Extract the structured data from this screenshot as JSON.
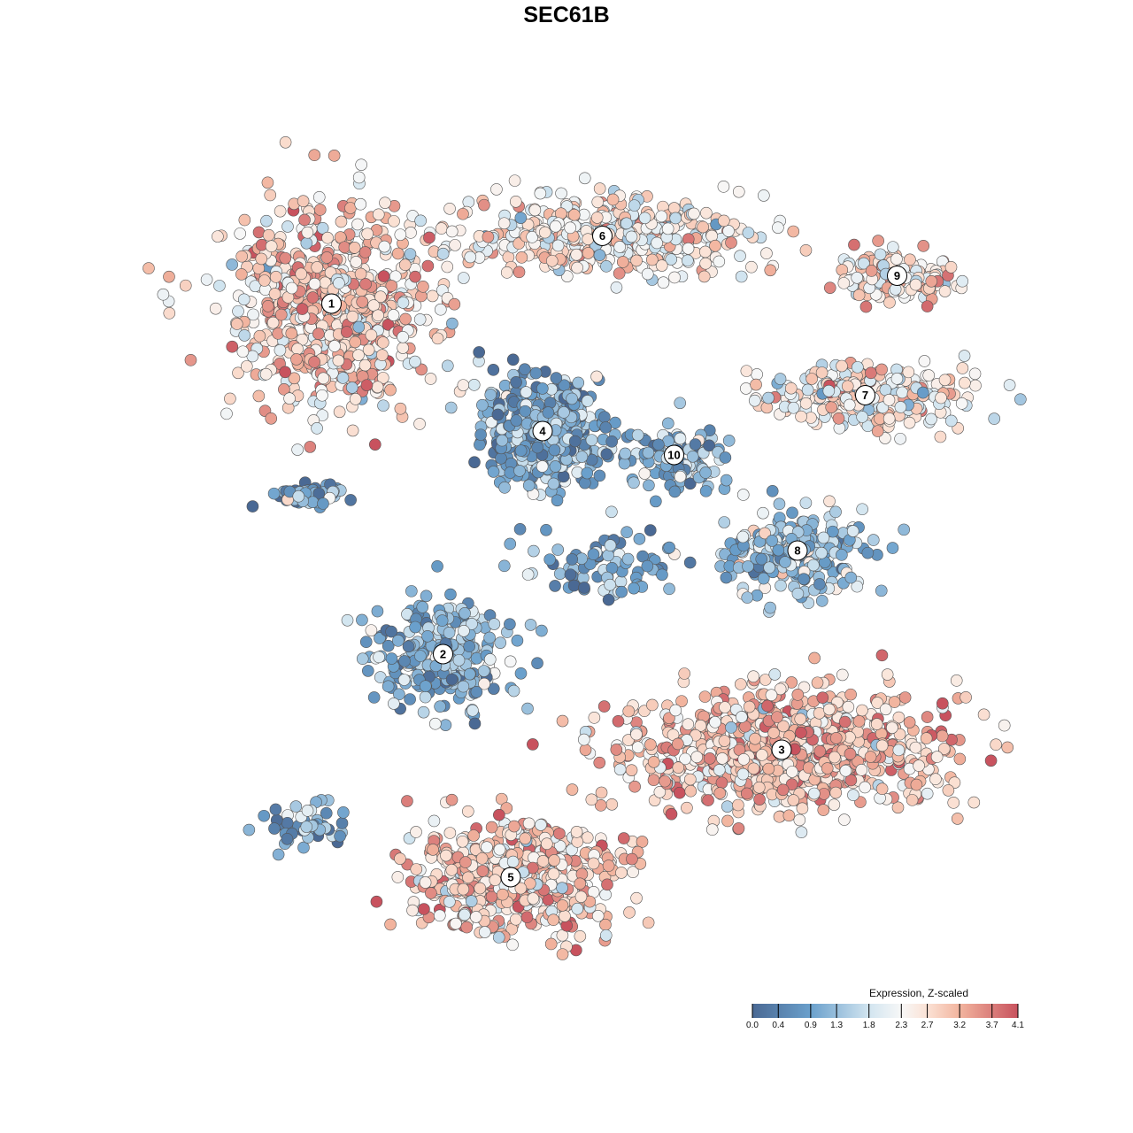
{
  "chart_data": {
    "type": "scatter",
    "title": "SEC61B",
    "xlabel": "",
    "ylabel": "",
    "grid": false,
    "axes_visible": false,
    "color_variable": "Expression, Z-scaled",
    "colorbar": {
      "title": "Expression, Z-scaled",
      "range": [
        0.0,
        4.1
      ],
      "ticks": [
        "0.0",
        "0.4",
        "0.9",
        "1.3",
        "1.8",
        "2.3",
        "2.7",
        "3.2",
        "3.7",
        "4.1"
      ],
      "tick_values": [
        0.0,
        0.4,
        0.9,
        1.3,
        1.8,
        2.3,
        2.7,
        3.2,
        3.7,
        4.1
      ],
      "colors": [
        [
          "0.0",
          "#4a6994"
        ],
        [
          "0.9",
          "#6aa0cc"
        ],
        [
          "1.8",
          "#d2e5f0"
        ],
        [
          "2.3",
          "#f7f7f7"
        ],
        [
          "2.7",
          "#fbe2d5"
        ],
        [
          "3.2",
          "#f2b49e"
        ],
        [
          "4.1",
          "#c8525e"
        ]
      ],
      "placement": "bottom-right"
    },
    "clusters": [
      {
        "label": "1",
        "center": [
          -5.9,
          6.6
        ],
        "spread": [
          2.4,
          2.3
        ],
        "mean_expression": 2.8,
        "n": 700
      },
      {
        "label": "2",
        "center": [
          -3.1,
          -2.2
        ],
        "spread": [
          1.5,
          1.2
        ],
        "mean_expression": 1.2,
        "n": 280
      },
      {
        "label": "3",
        "center": [
          5.4,
          -4.6
        ],
        "spread": [
          3.6,
          1.3
        ],
        "mean_expression": 3.0,
        "n": 900
      },
      {
        "label": "4",
        "center": [
          -0.6,
          3.4
        ],
        "spread": [
          1.4,
          1.2
        ],
        "mean_expression": 1.0,
        "n": 450
      },
      {
        "label": "5",
        "center": [
          -1.4,
          -7.8
        ],
        "spread": [
          2.5,
          1.3
        ],
        "mean_expression": 2.8,
        "n": 550
      },
      {
        "label": "6",
        "center": [
          0.9,
          8.3
        ],
        "spread": [
          3.3,
          0.9
        ],
        "mean_expression": 2.5,
        "n": 450
      },
      {
        "label": "7",
        "center": [
          7.5,
          4.3
        ],
        "spread": [
          2.4,
          0.7
        ],
        "mean_expression": 2.5,
        "n": 250
      },
      {
        "label": "8",
        "center": [
          5.8,
          0.4
        ],
        "spread": [
          1.6,
          1.0
        ],
        "mean_expression": 1.4,
        "n": 250
      },
      {
        "label": "9",
        "center": [
          8.3,
          7.3
        ],
        "spread": [
          1.3,
          0.6
        ],
        "mean_expression": 2.6,
        "n": 150
      },
      {
        "label": "10",
        "center": [
          2.7,
          2.8
        ],
        "spread": [
          1.2,
          0.8
        ],
        "mean_expression": 1.2,
        "n": 120
      },
      {
        "label": "",
        "center": [
          -6.5,
          1.8
        ],
        "spread": [
          0.8,
          0.3
        ],
        "mean_expression": 0.8,
        "n": 60
      },
      {
        "label": "",
        "center": [
          -6.6,
          -6.5
        ],
        "spread": [
          1.0,
          0.5
        ],
        "mean_expression": 0.9,
        "n": 50
      },
      {
        "label": "",
        "center": [
          0.9,
          0.1
        ],
        "spread": [
          1.8,
          0.7
        ],
        "mean_expression": 0.9,
        "n": 80
      }
    ]
  }
}
